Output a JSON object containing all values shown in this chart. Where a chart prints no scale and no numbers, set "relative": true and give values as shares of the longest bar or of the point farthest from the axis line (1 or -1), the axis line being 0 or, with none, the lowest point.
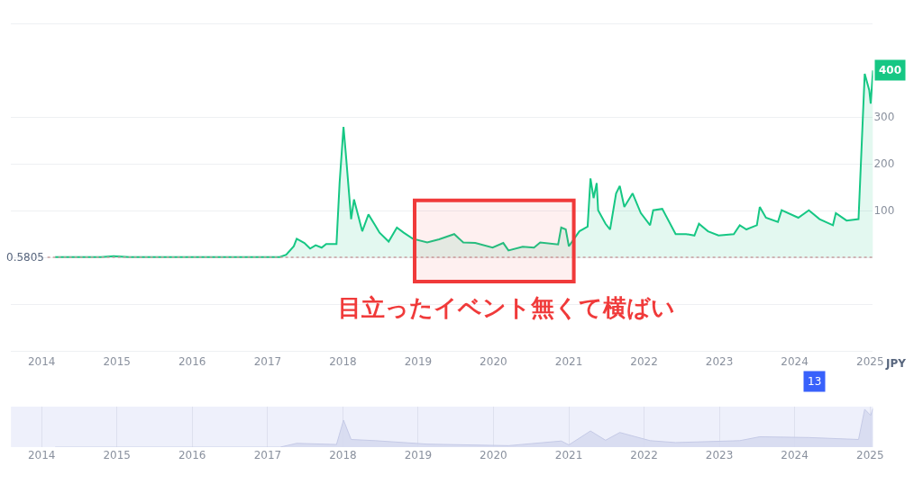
{
  "chart_data": [
    {
      "type": "area",
      "color": "#16c784",
      "x": [
        "2014-03-07",
        "2014-10-15",
        "2014-12-16",
        "2015-03-01",
        "2016-06-01",
        "2017-03-01",
        "2017-04-01",
        "2017-05-08",
        "2017-05-22",
        "2017-06-28",
        "2017-07-26",
        "2017-08-22",
        "2017-09-20",
        "2017-10-12",
        "2017-12-01",
        "2017-12-16",
        "2018-01-04",
        "2018-01-15",
        "2018-02-10",
        "2018-02-24",
        "2018-04-05",
        "2018-05-05",
        "2018-06-06",
        "2018-06-28",
        "2018-08-11",
        "2018-09-20",
        "2018-10-23",
        "2018-12-06",
        "2019-02-14",
        "2019-04-13",
        "2019-06-25",
        "2019-08-08",
        "2019-10-05",
        "2019-12-28",
        "2020-02-18",
        "2020-03-14",
        "2020-05-22",
        "2020-07-16",
        "2020-08-15",
        "2020-11-10",
        "2020-11-25",
        "2020-12-17",
        "2021-01-01",
        "2021-02-21",
        "2021-04-02",
        "2021-04-16",
        "2021-05-01",
        "2021-05-16",
        "2021-05-23",
        "2021-06-28",
        "2021-07-20",
        "2021-08-18",
        "2021-09-05",
        "2021-09-27",
        "2021-11-06",
        "2021-12-16",
        "2022-01-30",
        "2022-02-14",
        "2022-03-30",
        "2022-06-03",
        "2022-07-24",
        "2022-09-02",
        "2022-09-24",
        "2022-11-07",
        "2022-12-28",
        "2023-03-12",
        "2023-04-10",
        "2023-05-12",
        "2023-07-02",
        "2023-07-16",
        "2023-08-15",
        "2023-10-12",
        "2023-10-30",
        "2024-01-19",
        "2024-03-10",
        "2024-05-01",
        "2024-07-05",
        "2024-07-19",
        "2024-09-09",
        "2024-11-06",
        "2024-12-06",
        "2024-12-28",
        "2025-01-04",
        "2025-01-15"
      ],
      "values": [
        1,
        1,
        3,
        1,
        1,
        1,
        6,
        24,
        40,
        31,
        19,
        26,
        21,
        29,
        29,
        159,
        279,
        223,
        82,
        124,
        56,
        92,
        69,
        53,
        34,
        64,
        53,
        40,
        32,
        39,
        50,
        32,
        31,
        21,
        31,
        15,
        23,
        21,
        32,
        28,
        64,
        60,
        24,
        56,
        66,
        169,
        127,
        159,
        101,
        72,
        60,
        137,
        153,
        108,
        137,
        95,
        69,
        101,
        104,
        50,
        50,
        47,
        72,
        56,
        47,
        50,
        69,
        60,
        69,
        108,
        85,
        76,
        101,
        85,
        101,
        82,
        69,
        95,
        79,
        82,
        393,
        358,
        329,
        400
      ],
      "xlim": [
        "2013-08-05",
        "2025-01-15"
      ],
      "xticks": [
        "2014",
        "2015",
        "2016",
        "2017",
        "2018",
        "2019",
        "2020",
        "2021",
        "2022",
        "2023",
        "2024",
        "2025"
      ],
      "ylim": [
        -205,
        502
      ],
      "yticks": [
        {
          "value": -200,
          "label": null
        },
        {
          "value": -100,
          "label": null
        },
        {
          "value": 0,
          "label": null
        },
        100,
        200,
        300,
        {
          "value": 500,
          "label": null
        }
      ],
      "ylabel": "JPY",
      "grid": "y",
      "marker": "none",
      "line_style": "solid",
      "ref_lines": [
        {
          "axis": "y",
          "value": 0.5805,
          "label": "0.5805",
          "color": "#c8a0a0",
          "line_style": "dotted"
        }
      ],
      "bands": [
        {
          "axis": "x",
          "from": "2018-12-15",
          "to": "2021-01-25",
          "label": "目立ったイベント無くて横ばい",
          "color": "#f03a3a"
        }
      ],
      "annotations": [
        {
          "text": "400",
          "x": "2025-01-15",
          "y": 400
        },
        "13"
      ]
    },
    {
      "type": "area",
      "color": "#d6daf0",
      "relative": true,
      "x": [
        "2014-03-07",
        "2017-03-01",
        "2017-05-22",
        "2017-12-01",
        "2018-01-04",
        "2018-02-10",
        "2018-06-06",
        "2019-02-14",
        "2020-03-14",
        "2020-11-25",
        "2021-01-01",
        "2021-04-16",
        "2021-06-28",
        "2021-09-05",
        "2022-01-30",
        "2022-06-03",
        "2023-04-10",
        "2023-07-16",
        "2024-03-10",
        "2024-11-06",
        "2024-12-06",
        "2025-01-04",
        "2025-01-15"
      ],
      "values": [
        0.0,
        0.0,
        0.1,
        0.07,
        0.7,
        0.2,
        0.17,
        0.08,
        0.04,
        0.16,
        0.06,
        0.42,
        0.18,
        0.38,
        0.17,
        0.12,
        0.17,
        0.27,
        0.25,
        0.2,
        0.98,
        0.82,
        1
      ],
      "xlim": [
        "2013-08-05",
        "2025-01-15"
      ],
      "xticks": [
        "2014",
        "2015",
        "2016",
        "2017",
        "2018",
        "2019",
        "2020",
        "2021",
        "2022",
        "2023",
        "2024",
        "2025"
      ],
      "grid": "x",
      "marker": "none",
      "tick_labels": "x"
    }
  ]
}
